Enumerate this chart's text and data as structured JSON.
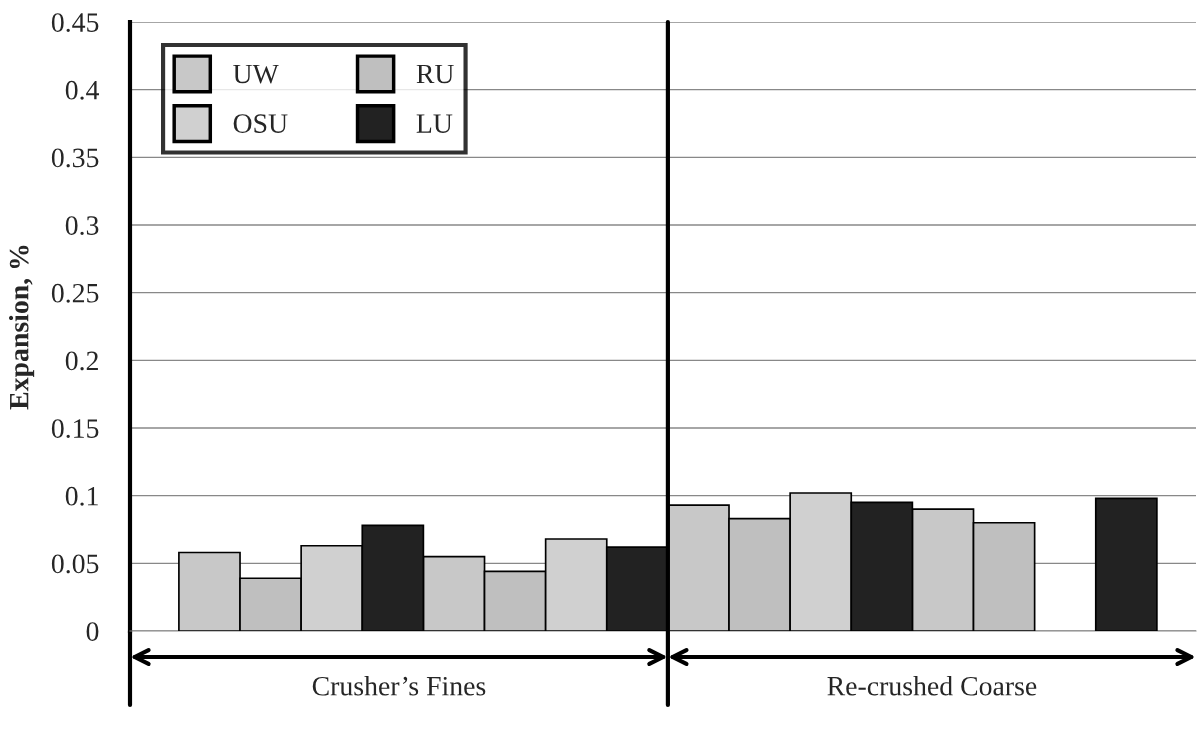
{
  "chart_data": {
    "type": "bar",
    "ylabel": "Expansion, %",
    "categories": [
      null,
      null,
      null,
      null
    ],
    "series": [
      {
        "name": "UW",
        "color": "#c8c8c8",
        "values": [
          0.058,
          0.055,
          0.093,
          0.09
        ]
      },
      {
        "name": "RU",
        "color": "#bfbfbf",
        "values": [
          0.039,
          0.044,
          0.083,
          0.08
        ]
      },
      {
        "name": "OSU",
        "color": "#d0d0d0",
        "values": [
          0.063,
          0.068,
          0.102,
          null
        ]
      },
      {
        "name": "LU",
        "color": "#222222",
        "values": [
          0.078,
          0.062,
          0.095,
          0.098
        ]
      }
    ],
    "ylim": [
      0,
      0.45
    ],
    "yticks": [
      0,
      0.05,
      0.1,
      0.15,
      0.2,
      0.25,
      0.3,
      0.35,
      0.4,
      0.45
    ],
    "grid": "y",
    "legend": "top left",
    "annotations": [
      "Crusher’s Fines",
      "Re-crushed Coarse"
    ]
  }
}
